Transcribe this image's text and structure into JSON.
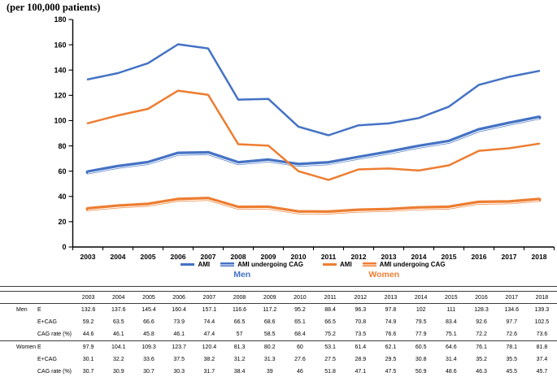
{
  "chart_data": {
    "type": "line",
    "ylabel": "(per 100,000 patients)",
    "categories": [
      "2003",
      "2004",
      "2005",
      "2006",
      "2007",
      "2008",
      "2009",
      "2010",
      "2011",
      "2012",
      "2013",
      "2014",
      "2015",
      "2016",
      "2017",
      "2018"
    ],
    "ylim": [
      0,
      180
    ],
    "ytick_step": 20,
    "grid": false,
    "legend_position": "bottom",
    "series": [
      {
        "name": "AMI",
        "group": "Men",
        "color": "#4472C4",
        "style": "thin",
        "values": [
          132.6,
          137.6,
          145.4,
          160.4,
          157.1,
          116.6,
          117.2,
          95.2,
          88.4,
          96.3,
          97.8,
          102,
          111,
          128.3,
          134.6,
          139.3
        ]
      },
      {
        "name": "AMI undergoing CAG",
        "group": "Men",
        "color": "#4472C4",
        "style": "thick",
        "values": [
          59.2,
          63.5,
          66.6,
          73.9,
          74.4,
          66.5,
          68.6,
          65.1,
          66.5,
          70.8,
          74.9,
          79.5,
          83.4,
          92.6,
          97.7,
          102.5
        ]
      },
      {
        "name": "AMI",
        "group": "Women",
        "color": "#ED7D31",
        "style": "thin",
        "values": [
          97.9,
          104.1,
          109.3,
          123.7,
          120.4,
          81.3,
          80.2,
          60,
          53.1,
          61.4,
          62.1,
          60.5,
          64.6,
          76.1,
          78.1,
          81.8
        ]
      },
      {
        "name": "AMI undergoing CAG",
        "group": "Women",
        "color": "#ED7D31",
        "style": "thick",
        "values": [
          30.1,
          32.2,
          33.6,
          37.5,
          38.2,
          31.2,
          31.3,
          27.6,
          27.5,
          28.9,
          29.5,
          30.8,
          31.4,
          35.2,
          35.5,
          37.4
        ]
      }
    ],
    "legend_groups": [
      {
        "label": "Men",
        "color": "#4472C4",
        "entries": [
          "AMI",
          "AMI undergoing CAG"
        ]
      },
      {
        "label": "Women",
        "color": "#ED7D31",
        "entries": [
          "AMI",
          "AMI undergoing CAG"
        ]
      }
    ]
  },
  "table": {
    "year_headers": [
      "2003",
      "2004",
      "2005",
      "2006",
      "2007",
      "2008",
      "2009",
      "2010",
      "2011",
      "2012",
      "2013",
      "2014",
      "2015",
      "2016",
      "2017",
      "2018"
    ],
    "groups": [
      {
        "label": "Men",
        "rows": [
          {
            "label": "E",
            "values": [
              "132.6",
              "137.6",
              "145.4",
              "160.4",
              "157.1",
              "116.6",
              "117.2",
              "95.2",
              "88.4",
              "96.3",
              "97.8",
              "102",
              "111",
              "128.3",
              "134.6",
              "139.3"
            ]
          },
          {
            "label": "E+CAG",
            "values": [
              "59.2",
              "63.5",
              "66.6",
              "73.9",
              "74.4",
              "66.5",
              "68.6",
              "65.1",
              "66.5",
              "70.8",
              "74.9",
              "79.5",
              "83.4",
              "92.6",
              "97.7",
              "102.5"
            ]
          },
          {
            "label": "CAG rate (%)",
            "values": [
              "44.6",
              "46.1",
              "45.8",
              "46.1",
              "47.4",
              "57",
              "58.5",
              "68.4",
              "75.2",
              "73.5",
              "76.6",
              "77.9",
              "75.1",
              "72.2",
              "72.6",
              "73.6"
            ]
          }
        ]
      },
      {
        "label": "Women",
        "rows": [
          {
            "label": "E",
            "values": [
              "97.9",
              "104.1",
              "109.3",
              "123.7",
              "120.4",
              "81.3",
              "80.2",
              "60",
              "53.1",
              "61.4",
              "62.1",
              "60.5",
              "64.6",
              "76.1",
              "78.1",
              "81.8"
            ]
          },
          {
            "label": "E+CAG",
            "values": [
              "30.1",
              "32.2",
              "33.6",
              "37.5",
              "38.2",
              "31.2",
              "31.3",
              "27.6",
              "27.5",
              "28.9",
              "29.5",
              "30.8",
              "31.4",
              "35.2",
              "35.5",
              "37.4"
            ]
          },
          {
            "label": "CAG rate (%)",
            "values": [
              "30.7",
              "30.9",
              "30.7",
              "30.3",
              "31.7",
              "38.4",
              "39",
              "46",
              "51.8",
              "47.1",
              "47.5",
              "50.9",
              "48.6",
              "46.3",
              "45.5",
              "45.7"
            ]
          }
        ]
      }
    ]
  },
  "colors": {
    "axis": "#000000",
    "rule": "#3d3d3d",
    "men": "#4472C4",
    "women": "#ED7D31"
  }
}
